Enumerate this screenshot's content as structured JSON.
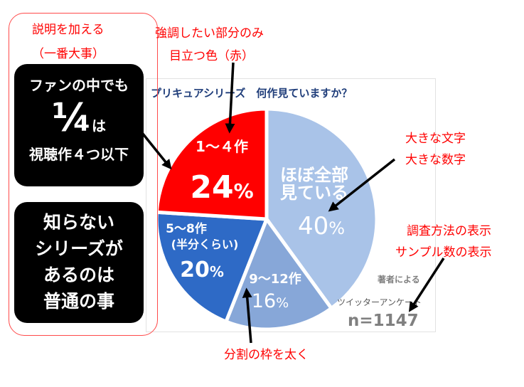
{
  "chart_data": {
    "type": "pie",
    "title": "プリキュアシリーズ　何作見ていますか？",
    "slices": [
      {
        "label": "ほぼ全部見ている",
        "label_line1": "ほぼ全部",
        "label_line2": "見ている",
        "value": 40,
        "value_text": "40",
        "color": "#a9c3e8"
      },
      {
        "label": "9〜12作",
        "value": 16,
        "value_text": "16",
        "color": "#87a7d8"
      },
      {
        "label": "5〜8作（半分くらい）",
        "label_line1": "5〜8作",
        "label_line2": "(半分くらい)",
        "value": 20,
        "value_text": "20",
        "color": "#2e6ac6"
      },
      {
        "label": "1〜４作",
        "value": 24,
        "value_text": "24",
        "color": "#ff0000"
      }
    ],
    "percent_sign": "%",
    "source": {
      "credit": "著者による",
      "survey": "ツイッターアンケート",
      "n": "n=1147"
    }
  },
  "left_panel": {
    "heading_line1": "説明を加える",
    "heading_line2": "（一番大事）",
    "box1_line1": "ファンの中でも",
    "box1_fraction": "¼",
    "box1_suffix": "は",
    "box1_line3": "視聴作４つ以下",
    "box2_lines": [
      "知らない",
      "シリーズが",
      "あるのは",
      "普通の事"
    ]
  },
  "annotations": {
    "emphasis_line1": "強調したい部分のみ",
    "emphasis_line2": "目立つ色（赤）",
    "big_text_line1": "大きな文字",
    "big_text_line2": "大きな数字",
    "method_line1": "調査方法の表示",
    "method_line2": "サンプル数の表示",
    "border": "分割の枠を太く"
  },
  "colors": {
    "annotation": "#ff0000",
    "title": "#1f3d7a",
    "frame": "#ff4a4a"
  }
}
